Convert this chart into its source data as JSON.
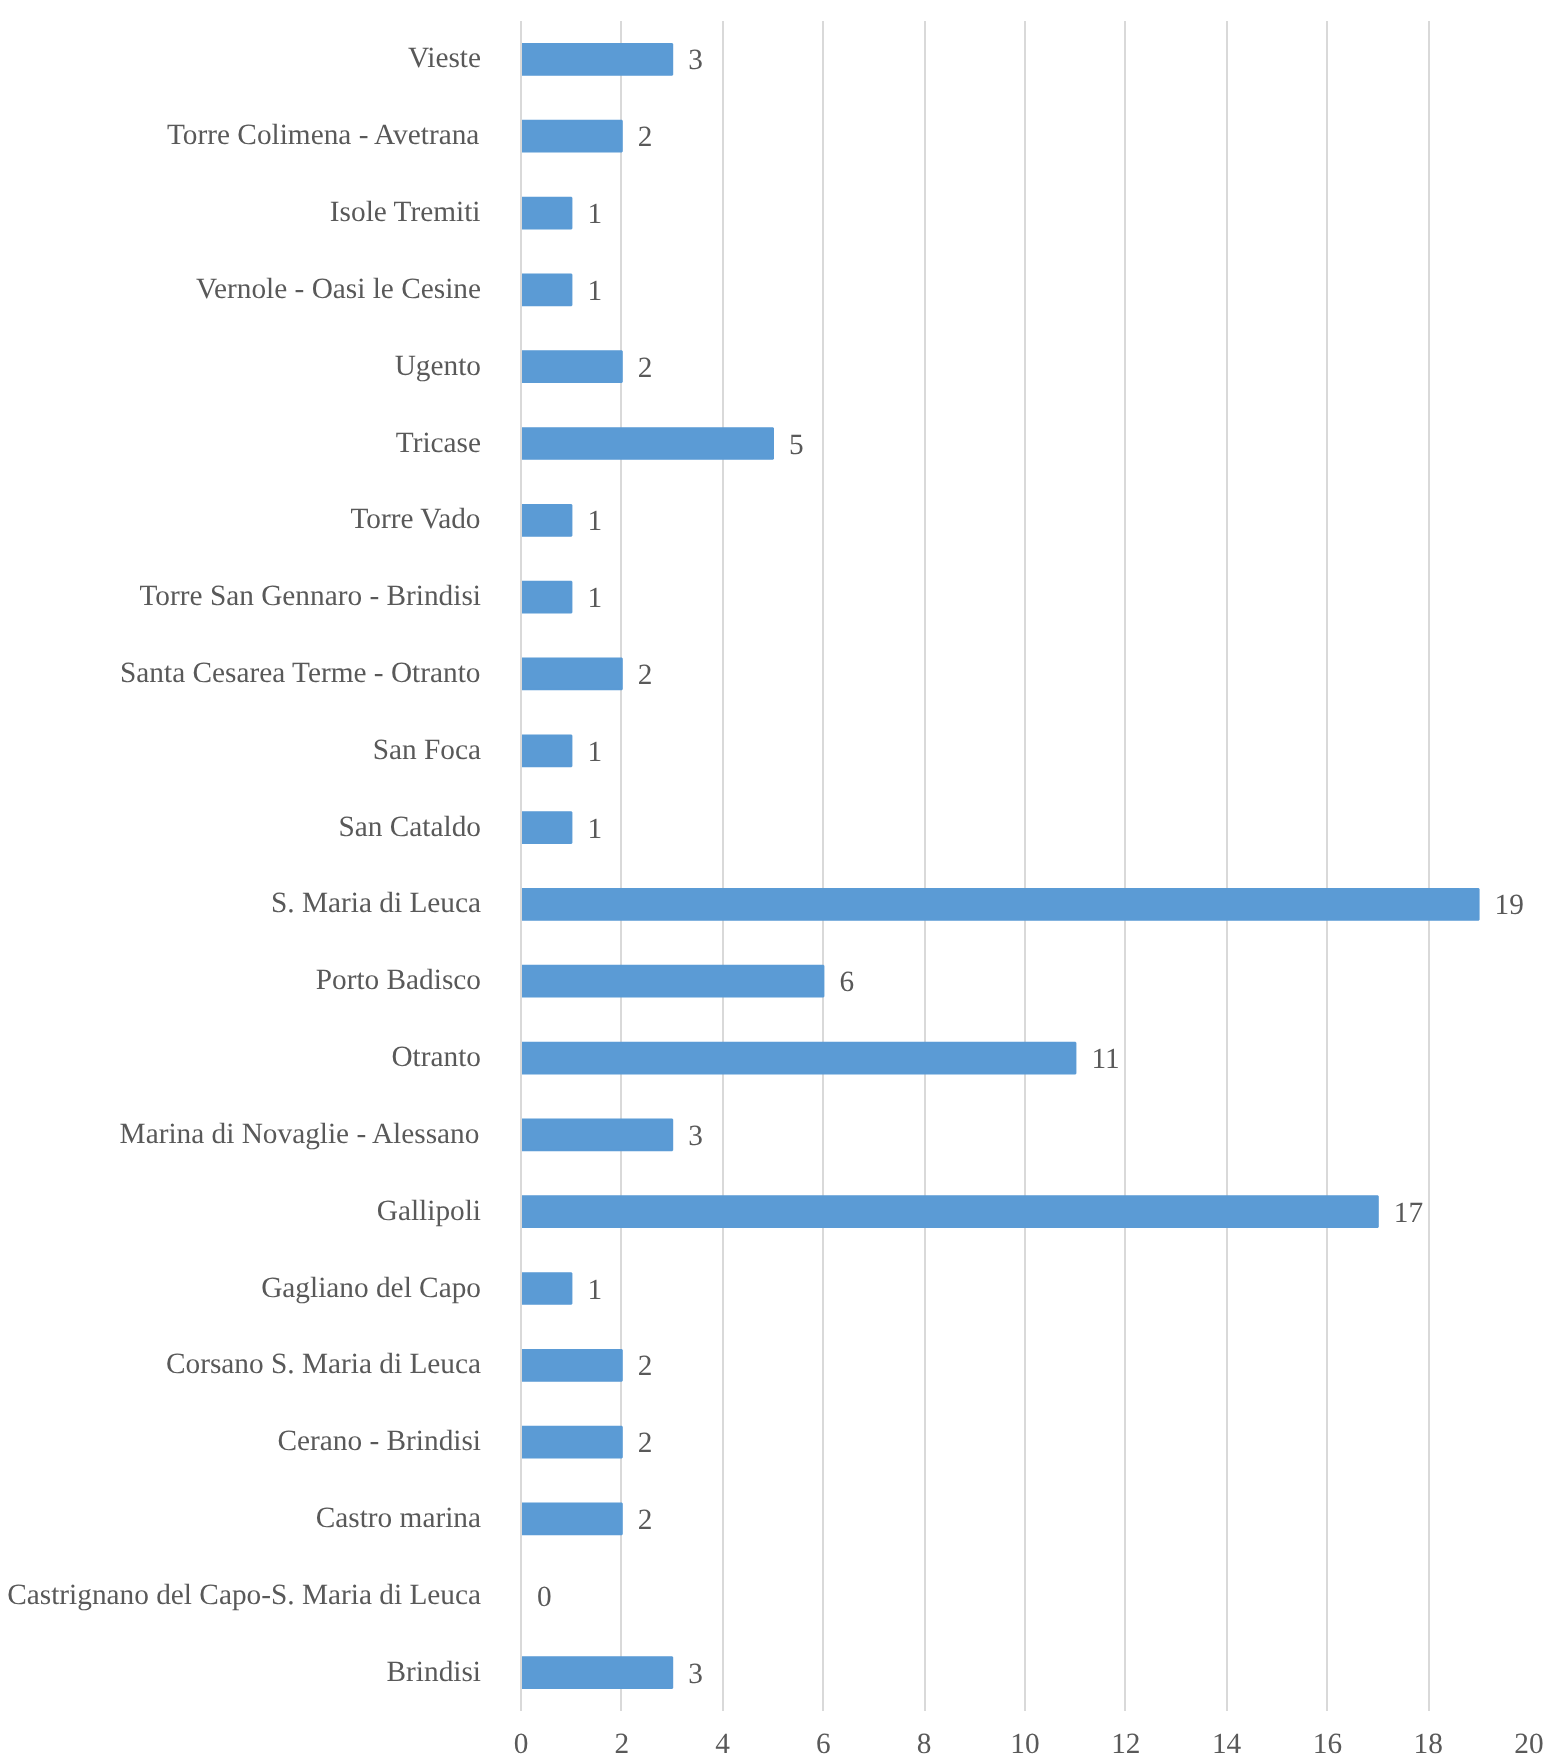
{
  "chart_data": {
    "type": "bar",
    "orientation": "horizontal",
    "categories": [
      "Vieste",
      "Torre Colimena - Avetrana",
      "Isole Tremiti",
      "Vernole - Oasi le Cesine",
      "Ugento",
      "Tricase",
      "Torre Vado",
      "Torre San Gennaro - Brindisi",
      "Santa Cesarea Terme - Otranto",
      "San Foca",
      "San Cataldo",
      "S. Maria di Leuca",
      "Porto Badisco",
      "Otranto",
      "Marina di Novaglie - Alessano",
      "Gallipoli",
      "Gagliano del Capo",
      "Corsano S. Maria di Leuca",
      "Cerano - Brindisi",
      "Castro marina",
      "Castrignano del Capo-S. Maria di Leuca",
      "Brindisi"
    ],
    "values": [
      3,
      2,
      1,
      1,
      2,
      5,
      1,
      1,
      2,
      1,
      1,
      19,
      6,
      11,
      3,
      17,
      1,
      2,
      2,
      2,
      0,
      3
    ],
    "color": "#5b9bd5",
    "xlim": [
      0,
      20
    ],
    "xticks": [
      0,
      2,
      4,
      6,
      8,
      10,
      12,
      14,
      16,
      18,
      20
    ],
    "grid": "x",
    "data_labels": true
  }
}
